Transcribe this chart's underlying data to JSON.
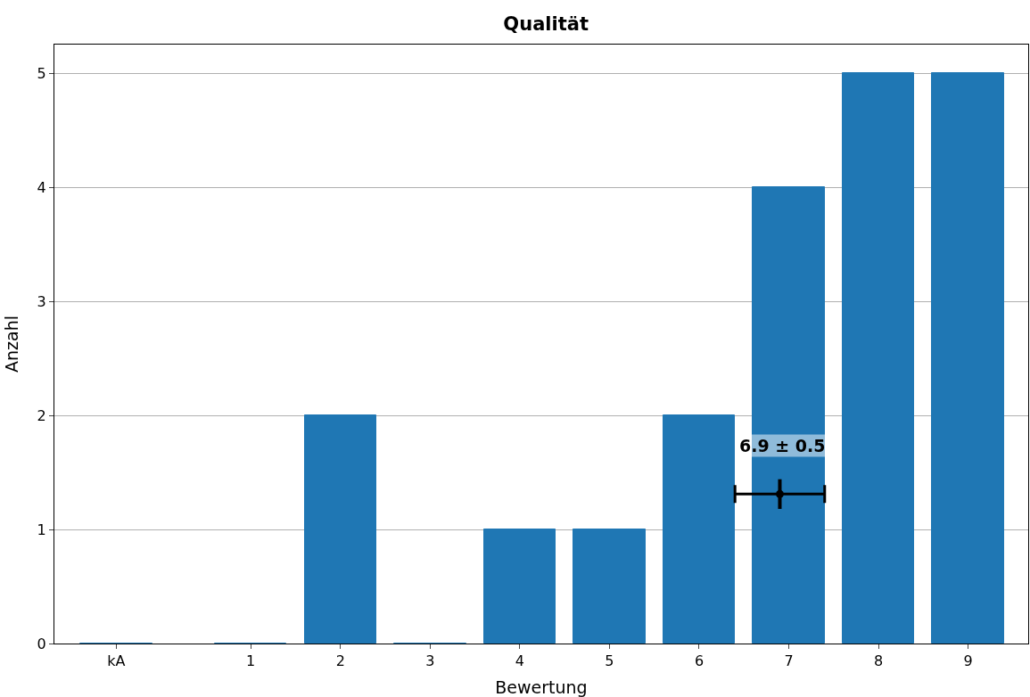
{
  "chart_data": {
    "type": "bar",
    "title": "Qualität",
    "xlabel": "Bewertung",
    "ylabel": "Anzahl",
    "x": [
      -0.5,
      1,
      2,
      3,
      4,
      5,
      6,
      7,
      8,
      9
    ],
    "series": [
      {
        "color": "#1f77b4",
        "values": [
          0,
          0,
          2,
          0,
          1,
          1,
          2,
          4,
          5,
          5
        ]
      },
      {
        "type": "scatter",
        "color": "#000000",
        "x": [
          6.9
        ],
        "values": [
          1.31
        ],
        "xerrors": [
          0.5
        ],
        "errors": [
          0.13
        ]
      }
    ],
    "annotations": [
      "6.9 ± 0.5"
    ],
    "xlim": [
      -1.19,
      9.67
    ],
    "xticks": [
      {
        "value": -0.5,
        "label": "kA"
      },
      1,
      2,
      3,
      4,
      5,
      6,
      7,
      8,
      9
    ],
    "ylim": [
      0,
      5.25
    ],
    "yticks": [
      0,
      1,
      2,
      3,
      4,
      5
    ],
    "grid": "y"
  }
}
